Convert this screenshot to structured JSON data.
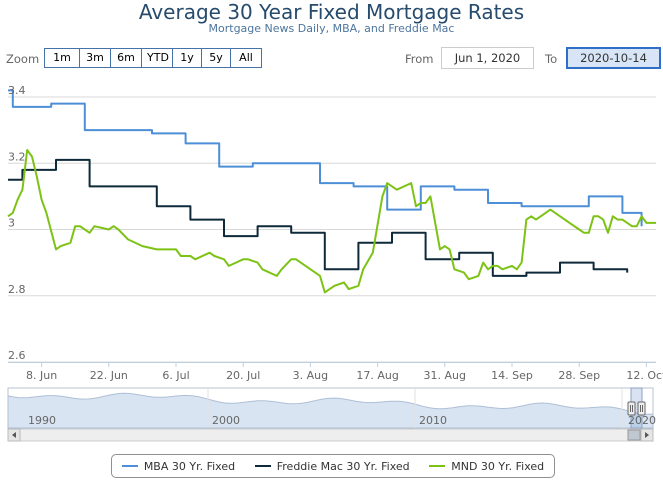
{
  "title": "Average 30 Year Fixed Mortgage Rates",
  "subtitle": "Mortgage News Daily, MBA, and Freddie Mac",
  "zoom": {
    "label": "Zoom",
    "buttons": [
      "1m",
      "3m",
      "6m",
      "YTD",
      "1y",
      "5y",
      "All"
    ]
  },
  "range": {
    "from_label": "From",
    "from_value": "Jun 1, 2020",
    "to_label": "To",
    "to_value": "2020-10-14"
  },
  "navigator": {
    "year_labels": [
      "1990",
      "2000",
      "2010",
      "2020"
    ]
  },
  "colors": {
    "mba": "#4d8fd6",
    "freddie": "#0e2a3a",
    "mnd": "#7dc216"
  },
  "chart_data": {
    "type": "line",
    "title": "Average 30 Year Fixed Mortgage Rates",
    "subtitle": "Mortgage News Daily, MBA, and Freddie Mac",
    "x_ticks": [
      "8. Jun",
      "22. Jun",
      "6. Jul",
      "20. Jul",
      "3. Aug",
      "17. Aug",
      "31. Aug",
      "14. Sep",
      "28. Sep",
      "12. Oct"
    ],
    "y_ticks": [
      "2.6",
      "2.8",
      "3",
      "3.2",
      "3.4"
    ],
    "ylim": [
      2.6,
      3.4
    ],
    "x_range": [
      "2020-06-01",
      "2020-10-14"
    ],
    "grid": true,
    "legend": "bottom",
    "series": [
      {
        "name": "MBA 30 Yr. Fixed",
        "color": "#4d8fd6",
        "step": true,
        "points": [
          [
            "2020-06-01",
            3.42
          ],
          [
            "2020-06-02",
            3.37
          ],
          [
            "2020-06-08",
            3.37
          ],
          [
            "2020-06-10",
            3.38
          ],
          [
            "2020-06-17",
            3.3
          ],
          [
            "2020-06-24",
            3.3
          ],
          [
            "2020-07-01",
            3.29
          ],
          [
            "2020-07-08",
            3.26
          ],
          [
            "2020-07-15",
            3.19
          ],
          [
            "2020-07-22",
            3.2
          ],
          [
            "2020-07-29",
            3.2
          ],
          [
            "2020-08-05",
            3.14
          ],
          [
            "2020-08-12",
            3.13
          ],
          [
            "2020-08-19",
            3.06
          ],
          [
            "2020-08-26",
            3.13
          ],
          [
            "2020-09-02",
            3.12
          ],
          [
            "2020-09-09",
            3.08
          ],
          [
            "2020-09-16",
            3.07
          ],
          [
            "2020-09-23",
            3.07
          ],
          [
            "2020-09-30",
            3.1
          ],
          [
            "2020-10-07",
            3.05
          ],
          [
            "2020-10-11",
            3.01
          ]
        ]
      },
      {
        "name": "Freddie Mac 30 Yr. Fixed",
        "color": "#0e2a3a",
        "step": true,
        "points": [
          [
            "2020-06-01",
            3.15
          ],
          [
            "2020-06-04",
            3.18
          ],
          [
            "2020-06-11",
            3.21
          ],
          [
            "2020-06-18",
            3.13
          ],
          [
            "2020-06-25",
            3.13
          ],
          [
            "2020-07-02",
            3.07
          ],
          [
            "2020-07-09",
            3.03
          ],
          [
            "2020-07-16",
            2.98
          ],
          [
            "2020-07-23",
            3.01
          ],
          [
            "2020-07-30",
            2.99
          ],
          [
            "2020-08-06",
            2.88
          ],
          [
            "2020-08-13",
            2.96
          ],
          [
            "2020-08-20",
            2.99
          ],
          [
            "2020-08-27",
            2.91
          ],
          [
            "2020-09-03",
            2.93
          ],
          [
            "2020-09-10",
            2.86
          ],
          [
            "2020-09-17",
            2.87
          ],
          [
            "2020-09-24",
            2.9
          ],
          [
            "2020-10-01",
            2.88
          ],
          [
            "2020-10-08",
            2.87
          ]
        ]
      },
      {
        "name": "MND 30 Yr. Fixed",
        "color": "#7dc216",
        "step": false,
        "points": [
          [
            "2020-06-01",
            3.04
          ],
          [
            "2020-06-02",
            3.05
          ],
          [
            "2020-06-03",
            3.09
          ],
          [
            "2020-06-04",
            3.12
          ],
          [
            "2020-06-05",
            3.24
          ],
          [
            "2020-06-06",
            3.22
          ],
          [
            "2020-06-07",
            3.16
          ],
          [
            "2020-06-08",
            3.09
          ],
          [
            "2020-06-09",
            3.05
          ],
          [
            "2020-06-11",
            2.94
          ],
          [
            "2020-06-12",
            2.95
          ],
          [
            "2020-06-14",
            2.96
          ],
          [
            "2020-06-15",
            3.01
          ],
          [
            "2020-06-16",
            3.01
          ],
          [
            "2020-06-18",
            2.99
          ],
          [
            "2020-06-19",
            3.01
          ],
          [
            "2020-06-22",
            3.0
          ],
          [
            "2020-06-23",
            3.01
          ],
          [
            "2020-06-24",
            3.0
          ],
          [
            "2020-06-26",
            2.97
          ],
          [
            "2020-06-29",
            2.95
          ],
          [
            "2020-07-02",
            2.94
          ],
          [
            "2020-07-06",
            2.94
          ],
          [
            "2020-07-07",
            2.92
          ],
          [
            "2020-07-09",
            2.92
          ],
          [
            "2020-07-10",
            2.91
          ],
          [
            "2020-07-13",
            2.93
          ],
          [
            "2020-07-14",
            2.92
          ],
          [
            "2020-07-16",
            2.91
          ],
          [
            "2020-07-17",
            2.89
          ],
          [
            "2020-07-20",
            2.91
          ],
          [
            "2020-07-21",
            2.91
          ],
          [
            "2020-07-23",
            2.9
          ],
          [
            "2020-07-24",
            2.88
          ],
          [
            "2020-07-27",
            2.86
          ],
          [
            "2020-07-28",
            2.88
          ],
          [
            "2020-07-30",
            2.91
          ],
          [
            "2020-07-31",
            2.91
          ],
          [
            "2020-08-02",
            2.89
          ],
          [
            "2020-08-04",
            2.87
          ],
          [
            "2020-08-05",
            2.86
          ],
          [
            "2020-08-06",
            2.81
          ],
          [
            "2020-08-08",
            2.83
          ],
          [
            "2020-08-10",
            2.84
          ],
          [
            "2020-08-11",
            2.82
          ],
          [
            "2020-08-13",
            2.83
          ],
          [
            "2020-08-14",
            2.88
          ],
          [
            "2020-08-16",
            2.93
          ],
          [
            "2020-08-18",
            3.1
          ],
          [
            "2020-08-19",
            3.14
          ],
          [
            "2020-08-20",
            3.13
          ],
          [
            "2020-08-21",
            3.12
          ],
          [
            "2020-08-24",
            3.14
          ],
          [
            "2020-08-25",
            3.07
          ],
          [
            "2020-08-26",
            3.08
          ],
          [
            "2020-08-27",
            3.08
          ],
          [
            "2020-08-28",
            3.1
          ],
          [
            "2020-08-30",
            2.94
          ],
          [
            "2020-08-31",
            2.95
          ],
          [
            "2020-09-01",
            2.94
          ],
          [
            "2020-09-02",
            2.88
          ],
          [
            "2020-09-04",
            2.87
          ],
          [
            "2020-09-05",
            2.85
          ],
          [
            "2020-09-07",
            2.86
          ],
          [
            "2020-09-08",
            2.9
          ],
          [
            "2020-09-09",
            2.88
          ],
          [
            "2020-09-10",
            2.89
          ],
          [
            "2020-09-11",
            2.89
          ],
          [
            "2020-09-12",
            2.88
          ],
          [
            "2020-09-14",
            2.89
          ],
          [
            "2020-09-15",
            2.88
          ],
          [
            "2020-09-16",
            2.9
          ],
          [
            "2020-09-17",
            3.03
          ],
          [
            "2020-09-18",
            3.04
          ],
          [
            "2020-09-19",
            3.03
          ],
          [
            "2020-09-21",
            3.05
          ],
          [
            "2020-09-22",
            3.06
          ],
          [
            "2020-09-23",
            3.05
          ],
          [
            "2020-09-25",
            3.03
          ],
          [
            "2020-09-26",
            3.02
          ],
          [
            "2020-09-28",
            3.0
          ],
          [
            "2020-09-29",
            2.99
          ],
          [
            "2020-09-30",
            2.99
          ],
          [
            "2020-10-01",
            3.04
          ],
          [
            "2020-10-02",
            3.04
          ],
          [
            "2020-10-03",
            3.03
          ],
          [
            "2020-10-04",
            2.99
          ],
          [
            "2020-10-05",
            3.04
          ],
          [
            "2020-10-06",
            3.03
          ],
          [
            "2020-10-07",
            3.03
          ],
          [
            "2020-10-09",
            3.01
          ],
          [
            "2020-10-10",
            3.01
          ],
          [
            "2020-10-11",
            3.04
          ],
          [
            "2020-10-12",
            3.02
          ],
          [
            "2020-10-14",
            3.02
          ]
        ]
      }
    ]
  }
}
